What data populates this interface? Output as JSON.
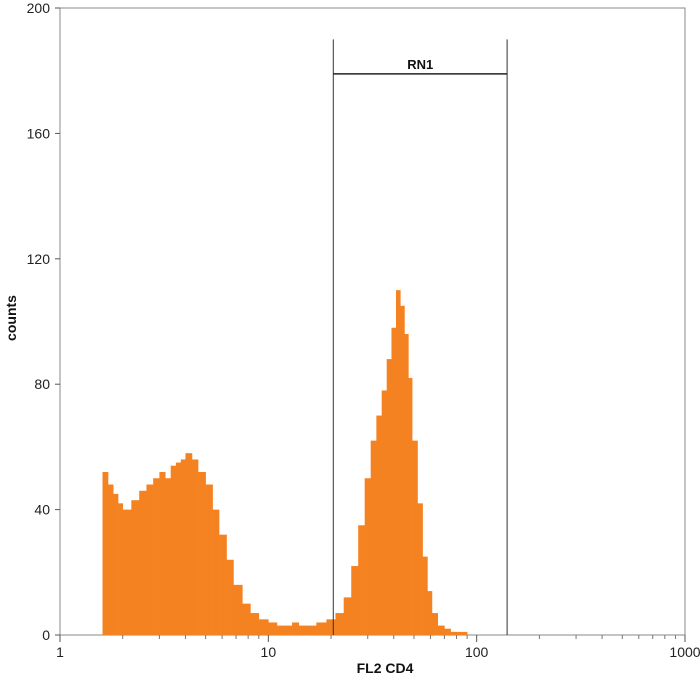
{
  "chart_data": {
    "type": "bar",
    "title": "",
    "xlabel": "FL2  CD4",
    "ylabel": "counts",
    "x_scale": "log",
    "xlim": [
      1,
      1000
    ],
    "ylim": [
      0,
      200
    ],
    "x_ticks": [
      1,
      10,
      100,
      1000
    ],
    "x_tick_labels": [
      "1",
      "10",
      "100",
      "1000"
    ],
    "y_ticks": [
      0,
      40,
      80,
      120,
      160,
      200
    ],
    "y_tick_labels": [
      "0",
      "40",
      "80",
      "120",
      "160",
      "200"
    ],
    "grid": false,
    "color": "#f58220",
    "series": [
      {
        "x": [
          1.6,
          1.7,
          1.8,
          1.9,
          2.0,
          2.2,
          2.4,
          2.6,
          2.8,
          3.0,
          3.2,
          3.4,
          3.6,
          3.8,
          4.0,
          4.3,
          4.6,
          5.0,
          5.4,
          5.8,
          6.3,
          6.8,
          7.5,
          8.2,
          9.0,
          10,
          11,
          12,
          13,
          14,
          15,
          17,
          19,
          21,
          23,
          25,
          27,
          29,
          31,
          33,
          35,
          37,
          39,
          41,
          43,
          45,
          47,
          49,
          52,
          55,
          58,
          61,
          65,
          70,
          75,
          80,
          90
        ],
        "values": [
          52,
          48,
          45,
          42,
          40,
          43,
          46,
          48,
          50,
          52,
          50,
          54,
          55,
          56,
          58,
          56,
          52,
          48,
          40,
          32,
          24,
          16,
          10,
          7,
          5,
          4,
          3,
          3,
          4,
          3,
          3,
          4,
          5,
          7,
          12,
          22,
          35,
          50,
          62,
          70,
          78,
          88,
          98,
          110,
          105,
          96,
          82,
          62,
          42,
          25,
          14,
          7,
          3,
          2,
          1,
          1,
          0
        ]
      }
    ],
    "annotations": [
      {
        "type": "gate",
        "label": "RN1",
        "x_start": 20.5,
        "x_end": 140,
        "y_level": 179,
        "top": 190
      }
    ]
  }
}
